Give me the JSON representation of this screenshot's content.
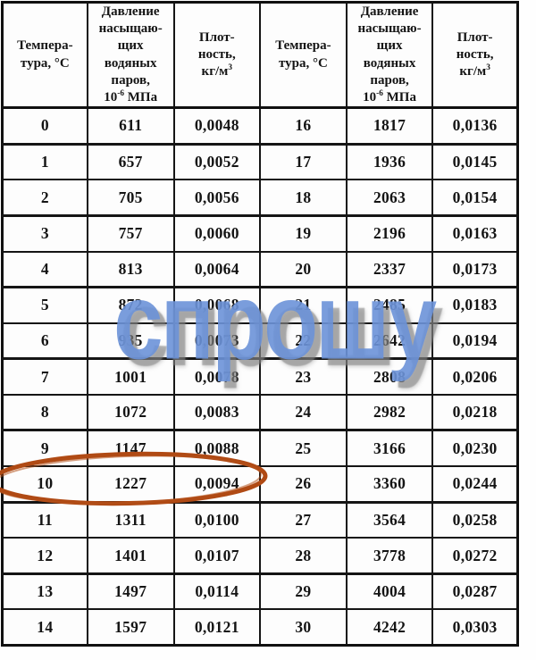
{
  "page": {
    "background": "#ffffff"
  },
  "watermark": {
    "text": "спрошу",
    "color": "#6c92d8",
    "shadow_color": "#7d7d7d"
  },
  "highlight_ellipse": {
    "color": "#b04a14",
    "annotated_row_temperature": "10"
  },
  "table": {
    "header": {
      "temp_lines": [
        "Темпера-",
        "тура, °С"
      ],
      "pressure_lines": [
        "Давление",
        "насыщаю-",
        "щих",
        "водяных",
        "паров,"
      ],
      "pressure_unit": {
        "base": "10",
        "sup": "-6",
        "rest": " МПа"
      },
      "density_lines": [
        "Плот-",
        "ность,"
      ],
      "density_unit": {
        "base": "кг/м",
        "sup": "3"
      }
    },
    "rows": [
      [
        "0",
        "611",
        "0,0048",
        "16",
        "1817",
        "0,0136"
      ],
      [
        "1",
        "657",
        "0,0052",
        "17",
        "1936",
        "0,0145"
      ],
      [
        "2",
        "705",
        "0,0056",
        "18",
        "2063",
        "0,0154"
      ],
      [
        "3",
        "757",
        "0,0060",
        "19",
        "2196",
        "0,0163"
      ],
      [
        "4",
        "813",
        "0,0064",
        "20",
        "2337",
        "0,0173"
      ],
      [
        "5",
        "872",
        "0,0068",
        "21",
        "2485",
        "0,0183"
      ],
      [
        "6",
        "935",
        "0,0073",
        "22",
        "2642",
        "0,0194"
      ],
      [
        "7",
        "1001",
        "0,0078",
        "23",
        "2808",
        "0,0206"
      ],
      [
        "8",
        "1072",
        "0,0083",
        "24",
        "2982",
        "0,0218"
      ],
      [
        "9",
        "1147",
        "0,0088",
        "25",
        "3166",
        "0,0230"
      ],
      [
        "10",
        "1227",
        "0,0094",
        "26",
        "3360",
        "0,0244"
      ],
      [
        "11",
        "1311",
        "0,0100",
        "27",
        "3564",
        "0,0258"
      ],
      [
        "12",
        "1401",
        "0,0107",
        "28",
        "3778",
        "0,0272"
      ],
      [
        "13",
        "1497",
        "0,0114",
        "29",
        "4004",
        "0,0287"
      ],
      [
        "14",
        "1597",
        "0,0121",
        "30",
        "4242",
        "0,0303"
      ]
    ],
    "highlighted_row_index": 10
  }
}
